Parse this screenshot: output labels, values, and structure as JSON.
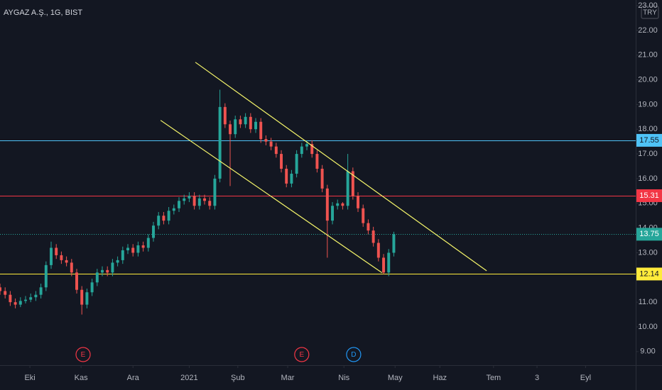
{
  "chart_data": {
    "type": "candlestick",
    "title": "AYGAZ A.Ş., 1G, BIST",
    "currency": "TRY",
    "up_color": "#26a69a",
    "down_color": "#ef5350",
    "xlim": [
      0,
      248.6
    ],
    "ylim": [
      8.45,
      23.23
    ],
    "grid": false,
    "xticks": [
      {
        "value": 11.7,
        "label": "Eki"
      },
      {
        "value": 31.7,
        "label": "Kas"
      },
      {
        "value": 52,
        "label": "Ara"
      },
      {
        "value": 74,
        "label": "2021"
      },
      {
        "value": 93,
        "label": "Şub"
      },
      {
        "value": 112.5,
        "label": "Mar"
      },
      {
        "value": 134.5,
        "label": "Nis"
      },
      {
        "value": 154.5,
        "label": "May"
      },
      {
        "value": 172,
        "label": "Haz"
      },
      {
        "value": 193,
        "label": "Tem"
      },
      {
        "value": 210,
        "label": "3"
      },
      {
        "value": 229,
        "label": "Eyl"
      }
    ],
    "yticks": [
      {
        "value": 9,
        "label": "9.00"
      },
      {
        "value": 10,
        "label": "10.00"
      },
      {
        "value": 11,
        "label": "11.00"
      },
      {
        "value": 12,
        "label": "12.00"
      },
      {
        "value": 13,
        "label": "13.00"
      },
      {
        "value": 14,
        "label": "14.00"
      },
      {
        "value": 15,
        "label": "15.00"
      },
      {
        "value": 16,
        "label": "16.00"
      },
      {
        "value": 17,
        "label": "17.00"
      },
      {
        "value": 18,
        "label": "18.00"
      },
      {
        "value": 19,
        "label": "19.00"
      },
      {
        "value": 20,
        "label": "20.00"
      },
      {
        "value": 21,
        "label": "21.00"
      },
      {
        "value": 22,
        "label": "22.00"
      },
      {
        "value": 23,
        "label": "23.00"
      }
    ],
    "x": [
      0,
      2,
      4,
      6,
      8,
      10,
      12,
      14,
      16,
      18,
      20,
      22,
      24,
      26,
      28,
      30,
      32,
      34,
      36,
      38,
      40,
      42,
      44,
      46,
      48,
      50,
      52,
      54,
      56,
      58,
      60,
      62,
      64,
      66,
      68,
      70,
      72,
      74,
      76,
      78,
      80,
      82,
      84,
      86,
      88,
      90,
      92,
      94,
      96,
      98,
      100,
      102,
      104,
      106,
      108,
      110,
      112,
      114,
      116,
      118,
      120,
      122,
      124,
      126,
      128,
      130,
      132,
      134,
      136,
      138,
      140,
      142,
      144,
      146,
      148,
      150,
      152,
      154
    ],
    "ohlc": [
      [
        11.6,
        11.75,
        11.3,
        11.45
      ],
      [
        11.45,
        11.6,
        11.15,
        11.3
      ],
      [
        11.3,
        11.45,
        10.85,
        11.0
      ],
      [
        11.0,
        11.15,
        10.75,
        10.9
      ],
      [
        10.9,
        11.2,
        10.8,
        11.05
      ],
      [
        11.05,
        11.25,
        10.95,
        11.1
      ],
      [
        11.1,
        11.35,
        11.0,
        11.2
      ],
      [
        11.2,
        11.45,
        11.05,
        11.3
      ],
      [
        11.3,
        11.75,
        11.15,
        11.6
      ],
      [
        11.6,
        12.65,
        11.45,
        12.5
      ],
      [
        12.5,
        13.45,
        12.35,
        13.2
      ],
      [
        13.2,
        13.35,
        12.75,
        12.9
      ],
      [
        12.9,
        13.05,
        12.55,
        12.7
      ],
      [
        12.7,
        12.85,
        12.45,
        12.6
      ],
      [
        12.6,
        12.75,
        12.05,
        12.2
      ],
      [
        12.2,
        12.35,
        11.35,
        11.5
      ],
      [
        11.5,
        11.65,
        10.5,
        10.9
      ],
      [
        10.9,
        11.55,
        10.75,
        11.4
      ],
      [
        11.4,
        11.95,
        11.25,
        11.8
      ],
      [
        11.8,
        12.35,
        11.65,
        12.2
      ],
      [
        12.2,
        12.45,
        12.05,
        12.3
      ],
      [
        12.3,
        12.45,
        12.05,
        12.2
      ],
      [
        12.2,
        12.75,
        12.05,
        12.6
      ],
      [
        12.6,
        12.85,
        12.45,
        12.7
      ],
      [
        12.7,
        13.25,
        12.55,
        13.1
      ],
      [
        13.1,
        13.35,
        12.95,
        13.2
      ],
      [
        13.2,
        13.35,
        12.85,
        13.0
      ],
      [
        13.0,
        13.45,
        12.85,
        13.3
      ],
      [
        13.3,
        13.45,
        13.05,
        13.2
      ],
      [
        13.2,
        13.75,
        13.05,
        13.6
      ],
      [
        13.6,
        14.25,
        13.45,
        14.1
      ],
      [
        14.1,
        14.65,
        13.95,
        14.5
      ],
      [
        14.5,
        14.65,
        14.15,
        14.3
      ],
      [
        14.3,
        14.85,
        14.15,
        14.7
      ],
      [
        14.7,
        14.95,
        14.55,
        14.8
      ],
      [
        14.8,
        15.25,
        14.65,
        15.1
      ],
      [
        15.1,
        15.35,
        14.95,
        15.2
      ],
      [
        15.2,
        15.45,
        15.05,
        15.3
      ],
      [
        15.3,
        15.45,
        14.75,
        14.9
      ],
      [
        14.9,
        15.35,
        14.75,
        15.2
      ],
      [
        15.2,
        15.35,
        14.95,
        15.1
      ],
      [
        15.1,
        15.25,
        14.75,
        14.9
      ],
      [
        14.9,
        16.15,
        14.75,
        16.0
      ],
      [
        16.0,
        19.6,
        15.85,
        18.9
      ],
      [
        18.9,
        19.05,
        18.05,
        18.2
      ],
      [
        18.2,
        18.35,
        15.7,
        17.8
      ],
      [
        17.8,
        18.55,
        17.65,
        18.4
      ],
      [
        18.4,
        18.55,
        18.05,
        18.2
      ],
      [
        18.2,
        18.65,
        18.05,
        18.5
      ],
      [
        18.5,
        18.65,
        17.85,
        18.0
      ],
      [
        18.0,
        18.45,
        17.85,
        18.3
      ],
      [
        18.3,
        18.45,
        17.45,
        17.6
      ],
      [
        17.6,
        17.75,
        17.35,
        17.5
      ],
      [
        17.5,
        17.65,
        17.15,
        17.3
      ],
      [
        17.3,
        17.45,
        16.85,
        17.0
      ],
      [
        17.0,
        17.15,
        16.25,
        16.4
      ],
      [
        16.4,
        16.55,
        15.65,
        15.8
      ],
      [
        15.8,
        16.35,
        15.65,
        16.2
      ],
      [
        16.2,
        17.15,
        16.05,
        17.0
      ],
      [
        17.0,
        17.45,
        16.85,
        17.3
      ],
      [
        17.3,
        17.55,
        17.15,
        17.4
      ],
      [
        17.4,
        17.55,
        16.85,
        17.0
      ],
      [
        17.0,
        17.15,
        16.25,
        16.4
      ],
      [
        16.4,
        16.55,
        15.45,
        15.6
      ],
      [
        15.6,
        15.75,
        12.8,
        14.3
      ],
      [
        14.3,
        15.05,
        14.15,
        14.9
      ],
      [
        14.9,
        15.15,
        14.75,
        15.0
      ],
      [
        15.0,
        15.05,
        14.75,
        14.9
      ],
      [
        14.9,
        17.0,
        14.75,
        16.3
      ],
      [
        16.3,
        16.45,
        15.15,
        15.3
      ],
      [
        15.3,
        15.45,
        14.65,
        14.8
      ],
      [
        14.8,
        14.95,
        14.05,
        14.2
      ],
      [
        14.2,
        14.35,
        13.75,
        13.9
      ],
      [
        13.9,
        14.05,
        13.25,
        13.4
      ],
      [
        13.4,
        13.55,
        12.65,
        12.8
      ],
      [
        12.8,
        12.95,
        12.14,
        12.2
      ],
      [
        12.2,
        13.15,
        12.05,
        13.0
      ],
      [
        13.0,
        13.85,
        12.85,
        13.75
      ]
    ],
    "levels": [
      {
        "value": 17.55,
        "color": "#4fc3f7",
        "text_color": "#131722",
        "style": "solid"
      },
      {
        "value": 15.31,
        "color": "#f23645",
        "text_color": "#ffffff",
        "style": "solid"
      },
      {
        "value": 13.75,
        "color": "#26a69a",
        "text_color": "#ffffff",
        "style": "dotted"
      },
      {
        "value": 12.14,
        "color": "#ffeb3b",
        "text_color": "#131722",
        "style": "solid"
      }
    ],
    "trend_lines": [
      {
        "x": [
          76.4,
          190.3
        ],
        "y": [
          20.71,
          12.27
        ],
        "color": "#f5f56a"
      },
      {
        "x": [
          62.8,
          149.4
        ],
        "y": [
          18.36,
          12.19
        ],
        "color": "#f5f56a"
      }
    ],
    "events": [
      {
        "x": 32.5,
        "label": "E",
        "color": "#f23645"
      },
      {
        "x": 118,
        "label": "E",
        "color": "#f23645"
      },
      {
        "x": 138.3,
        "label": "D",
        "color": "#2196f3"
      }
    ]
  }
}
